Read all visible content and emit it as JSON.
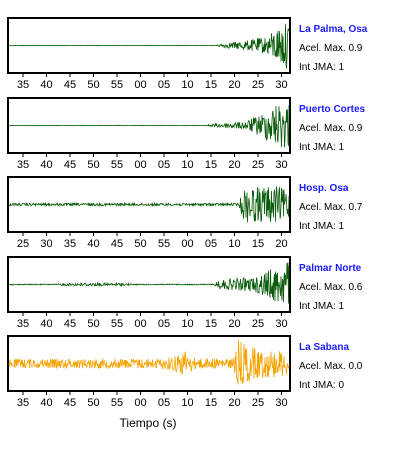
{
  "figure": {
    "xlabel": "Tiempo (s)",
    "colors": {
      "frame": "#000000",
      "station_label": "#1a1aff",
      "info_text": "#000000",
      "trace_dark": "#0a5c0a",
      "trace_yellow": "#f5a300"
    }
  },
  "chart_data": [
    {
      "type": "line",
      "station": "La Palma, Osa",
      "acel_max_label": "Acel. Max. 0.9",
      "int_jma_label": "Int JMA: 1",
      "trace_color": "trace_dark",
      "tick_labels": [
        "35",
        "40",
        "45",
        "50",
        "55",
        "00",
        "05",
        "10",
        "15",
        "20",
        "25",
        "30"
      ],
      "envelope": [
        {
          "t": 0.0,
          "a": 0.01
        },
        {
          "t": 0.74,
          "a": 0.01
        },
        {
          "t": 0.76,
          "a": 0.08
        },
        {
          "t": 0.84,
          "a": 0.18
        },
        {
          "t": 0.92,
          "a": 0.35
        },
        {
          "t": 0.97,
          "a": 0.8
        },
        {
          "t": 1.0,
          "a": 0.95
        }
      ]
    },
    {
      "type": "line",
      "station": "Puerto Cortes",
      "acel_max_label": "Acel. Max. 0.9",
      "int_jma_label": "Int JMA: 1",
      "trace_color": "trace_dark",
      "tick_labels": [
        "35",
        "40",
        "45",
        "50",
        "55",
        "00",
        "05",
        "10",
        "15",
        "20",
        "25",
        "30"
      ],
      "envelope": [
        {
          "t": 0.0,
          "a": 0.01
        },
        {
          "t": 0.7,
          "a": 0.01
        },
        {
          "t": 0.72,
          "a": 0.06
        },
        {
          "t": 0.84,
          "a": 0.15
        },
        {
          "t": 0.9,
          "a": 0.45
        },
        {
          "t": 0.96,
          "a": 0.9
        },
        {
          "t": 1.0,
          "a": 0.95
        }
      ]
    },
    {
      "type": "line",
      "station": "Hosp. Osa",
      "acel_max_label": "Acel. Max. 0.7",
      "int_jma_label": "Int JMA: 1",
      "trace_color": "trace_dark",
      "tick_labels": [
        "25",
        "30",
        "35",
        "40",
        "45",
        "50",
        "55",
        "00",
        "05",
        "10",
        "15",
        "20"
      ],
      "envelope": [
        {
          "t": 0.0,
          "a": 0.05
        },
        {
          "t": 0.82,
          "a": 0.05
        },
        {
          "t": 0.84,
          "a": 0.7
        },
        {
          "t": 0.95,
          "a": 0.75
        },
        {
          "t": 1.0,
          "a": 0.55
        }
      ]
    },
    {
      "type": "line",
      "station": "Palmar Norte",
      "acel_max_label": "Acel. Max. 0.6",
      "int_jma_label": "Int JMA: 1",
      "trace_color": "trace_dark",
      "tick_labels": [
        "35",
        "40",
        "45",
        "50",
        "55",
        "00",
        "05",
        "10",
        "15",
        "20",
        "25",
        "30"
      ],
      "envelope": [
        {
          "t": 0.0,
          "a": 0.02
        },
        {
          "t": 0.17,
          "a": 0.02
        },
        {
          "t": 0.19,
          "a": 0.05
        },
        {
          "t": 0.28,
          "a": 0.07
        },
        {
          "t": 0.31,
          "a": 0.06
        },
        {
          "t": 0.42,
          "a": 0.05
        },
        {
          "t": 0.44,
          "a": 0.02
        },
        {
          "t": 0.73,
          "a": 0.02
        },
        {
          "t": 0.75,
          "a": 0.18
        },
        {
          "t": 0.88,
          "a": 0.3
        },
        {
          "t": 0.95,
          "a": 0.7
        },
        {
          "t": 1.0,
          "a": 0.95
        }
      ]
    },
    {
      "type": "line",
      "station": "La Sabana",
      "acel_max_label": "Acel. Max. 0.0",
      "int_jma_label": "Int JMA: 0",
      "trace_color": "trace_yellow",
      "tick_labels": [
        "35",
        "40",
        "45",
        "50",
        "55",
        "00",
        "05",
        "10",
        "15",
        "20",
        "25",
        "30"
      ],
      "envelope": [
        {
          "t": 0.0,
          "a": 0.18
        },
        {
          "t": 0.55,
          "a": 0.2
        },
        {
          "t": 0.6,
          "a": 0.35
        },
        {
          "t": 0.63,
          "a": 0.55
        },
        {
          "t": 0.66,
          "a": 0.22
        },
        {
          "t": 0.8,
          "a": 0.2
        },
        {
          "t": 0.82,
          "a": 0.95
        },
        {
          "t": 0.88,
          "a": 0.6
        },
        {
          "t": 1.0,
          "a": 0.5
        }
      ]
    }
  ]
}
